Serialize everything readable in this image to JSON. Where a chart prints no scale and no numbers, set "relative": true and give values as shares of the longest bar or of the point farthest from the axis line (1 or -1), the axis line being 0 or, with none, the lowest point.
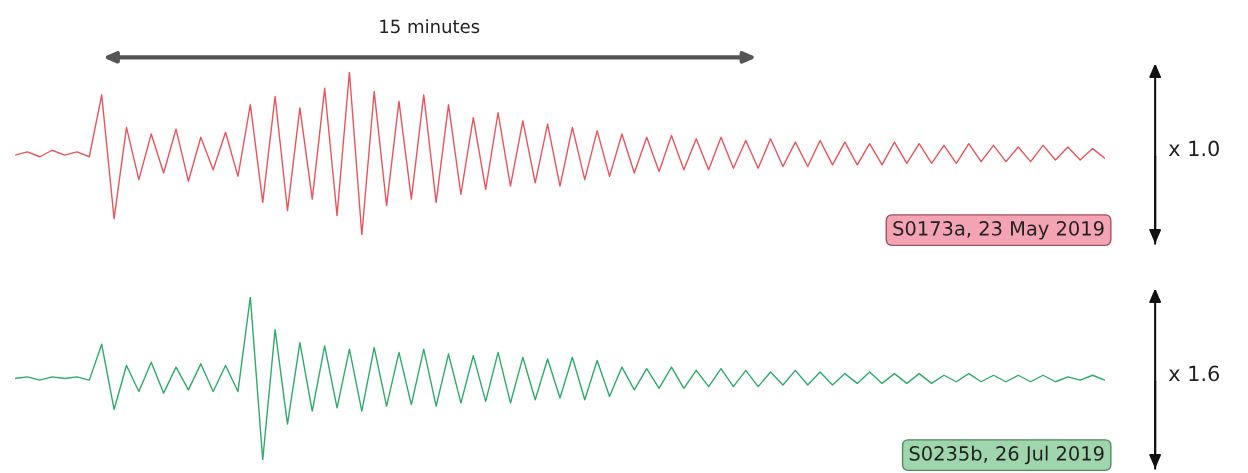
{
  "chart_data": [
    {
      "type": "line",
      "relative": true,
      "categories": [
        null,
        null,
        null,
        null,
        null,
        null,
        null,
        null,
        null,
        null,
        null,
        null,
        null,
        null,
        null,
        null,
        null,
        null,
        null,
        null,
        null,
        null,
        null,
        null,
        null,
        null,
        null,
        null,
        null,
        null,
        null,
        null,
        null,
        null,
        null,
        null,
        null,
        null,
        null,
        null,
        null,
        null,
        null,
        null,
        null,
        null,
        null,
        null,
        null,
        null,
        null,
        null,
        null,
        null,
        null,
        null,
        null,
        null,
        null,
        null,
        null,
        null,
        null,
        null,
        null,
        null,
        null,
        null,
        null,
        null,
        null,
        null,
        null,
        null,
        null,
        null,
        null,
        null,
        null,
        null,
        null,
        null,
        null,
        null,
        null,
        null,
        null,
        null,
        null
      ],
      "series": [
        {
          "color": "#e8545c",
          "values": [
            0.49,
            0.51,
            0.48,
            0.52,
            0.49,
            0.51,
            0.48,
            0.86,
            0.1,
            0.66,
            0.34,
            0.62,
            0.38,
            0.65,
            0.33,
            0.6,
            0.4,
            0.63,
            0.36,
            0.8,
            0.2,
            0.85,
            0.15,
            0.78,
            0.22,
            0.9,
            0.12,
            1.0,
            0.0,
            0.88,
            0.18,
            0.82,
            0.22,
            0.86,
            0.2,
            0.8,
            0.25,
            0.72,
            0.28,
            0.75,
            0.3,
            0.7,
            0.32,
            0.68,
            0.3,
            0.66,
            0.34,
            0.64,
            0.36,
            0.62,
            0.38,
            0.6,
            0.39,
            0.61,
            0.4,
            0.59,
            0.4,
            0.6,
            0.41,
            0.58,
            0.41,
            0.59,
            0.42,
            0.57,
            0.42,
            0.58,
            0.43,
            0.57,
            0.43,
            0.56,
            0.43,
            0.57,
            0.44,
            0.56,
            0.44,
            0.55,
            0.44,
            0.56,
            0.45,
            0.55,
            0.45,
            0.54,
            0.45,
            0.55,
            0.46,
            0.54,
            0.46,
            0.53,
            0.47
          ]
        }
      ],
      "annotations": [
        "15 minutes",
        "S0173a, 23 May 2019",
        "x 1.0"
      ]
    },
    {
      "type": "line",
      "relative": true,
      "categories": [
        null,
        null,
        null,
        null,
        null,
        null,
        null,
        null,
        null,
        null,
        null,
        null,
        null,
        null,
        null,
        null,
        null,
        null,
        null,
        null,
        null,
        null,
        null,
        null,
        null,
        null,
        null,
        null,
        null,
        null,
        null,
        null,
        null,
        null,
        null,
        null,
        null,
        null,
        null,
        null,
        null,
        null,
        null,
        null,
        null,
        null,
        null,
        null,
        null,
        null,
        null,
        null,
        null,
        null,
        null,
        null,
        null,
        null,
        null,
        null,
        null,
        null,
        null,
        null,
        null,
        null,
        null,
        null,
        null,
        null,
        null,
        null,
        null,
        null,
        null,
        null,
        null,
        null,
        null,
        null,
        null,
        null,
        null,
        null,
        null,
        null,
        null,
        null,
        null
      ],
      "series": [
        {
          "color": "#2eaa6a",
          "values": [
            0.5,
            0.51,
            0.49,
            0.51,
            0.5,
            0.51,
            0.49,
            0.71,
            0.31,
            0.58,
            0.42,
            0.6,
            0.41,
            0.57,
            0.43,
            0.59,
            0.42,
            0.58,
            0.42,
            1.0,
            0.0,
            0.8,
            0.22,
            0.72,
            0.3,
            0.7,
            0.32,
            0.68,
            0.3,
            0.69,
            0.33,
            0.66,
            0.34,
            0.68,
            0.33,
            0.65,
            0.35,
            0.64,
            0.36,
            0.66,
            0.35,
            0.63,
            0.37,
            0.62,
            0.38,
            0.63,
            0.37,
            0.61,
            0.39,
            0.57,
            0.43,
            0.56,
            0.44,
            0.57,
            0.44,
            0.55,
            0.45,
            0.56,
            0.45,
            0.55,
            0.45,
            0.54,
            0.46,
            0.55,
            0.46,
            0.54,
            0.46,
            0.53,
            0.47,
            0.54,
            0.47,
            0.53,
            0.47,
            0.53,
            0.47,
            0.52,
            0.48,
            0.53,
            0.48,
            0.52,
            0.48,
            0.52,
            0.48,
            0.52,
            0.48,
            0.51,
            0.49,
            0.52,
            0.49
          ]
        }
      ],
      "annotations": [
        "S0235b, 26 Jul 2019",
        "x 1.6"
      ]
    }
  ]
}
